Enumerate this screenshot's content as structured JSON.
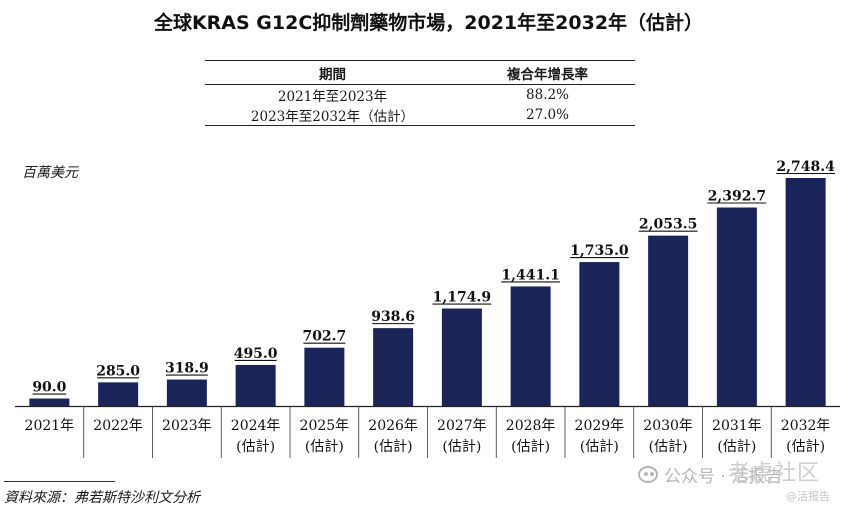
{
  "chart_data": {
    "type": "bar",
    "title": "全球KRAS G12C抑制劑藥物市場，2021年至2032年（估計）",
    "ylabel": "百萬美元",
    "categories": [
      [
        "2021年"
      ],
      [
        "2022年"
      ],
      [
        "2023年"
      ],
      [
        "2024年",
        "(估計)"
      ],
      [
        "2025年",
        "(估計)"
      ],
      [
        "2026年",
        "(估計)"
      ],
      [
        "2027年",
        "(估計)"
      ],
      [
        "2028年",
        "(估計)"
      ],
      [
        "2029年",
        "(估計)"
      ],
      [
        "2030年",
        "(估計)"
      ],
      [
        "2031年",
        "(估計)"
      ],
      [
        "2032年",
        "(估計)"
      ]
    ],
    "values": [
      90.0,
      285.0,
      318.9,
      495.0,
      702.7,
      938.6,
      1174.9,
      1441.1,
      1735.0,
      2053.5,
      2392.7,
      2748.4
    ],
    "value_labels": [
      "90.0",
      "285.0",
      "318.9",
      "495.0",
      "702.7",
      "938.6",
      "1,174.9",
      "1,441.1",
      "1,735.0",
      "2,053.5",
      "2,392.7",
      "2,748.4"
    ],
    "ylim": [
      0,
      2900
    ],
    "bar_color": "#1b2459",
    "grid": false,
    "cagr_table": {
      "headers": [
        "期間",
        "複合年增長率"
      ],
      "rows": [
        [
          "2021年至2023年",
          "88.2%"
        ],
        [
          "2023年至2032年（估計）",
          "27.0%"
        ]
      ]
    }
  },
  "source": "資料來源：弗若斯特沙利文分析",
  "watermark": {
    "account": "公众号 · 活报告",
    "site": "老虎社区",
    "handle": "@活报告"
  }
}
